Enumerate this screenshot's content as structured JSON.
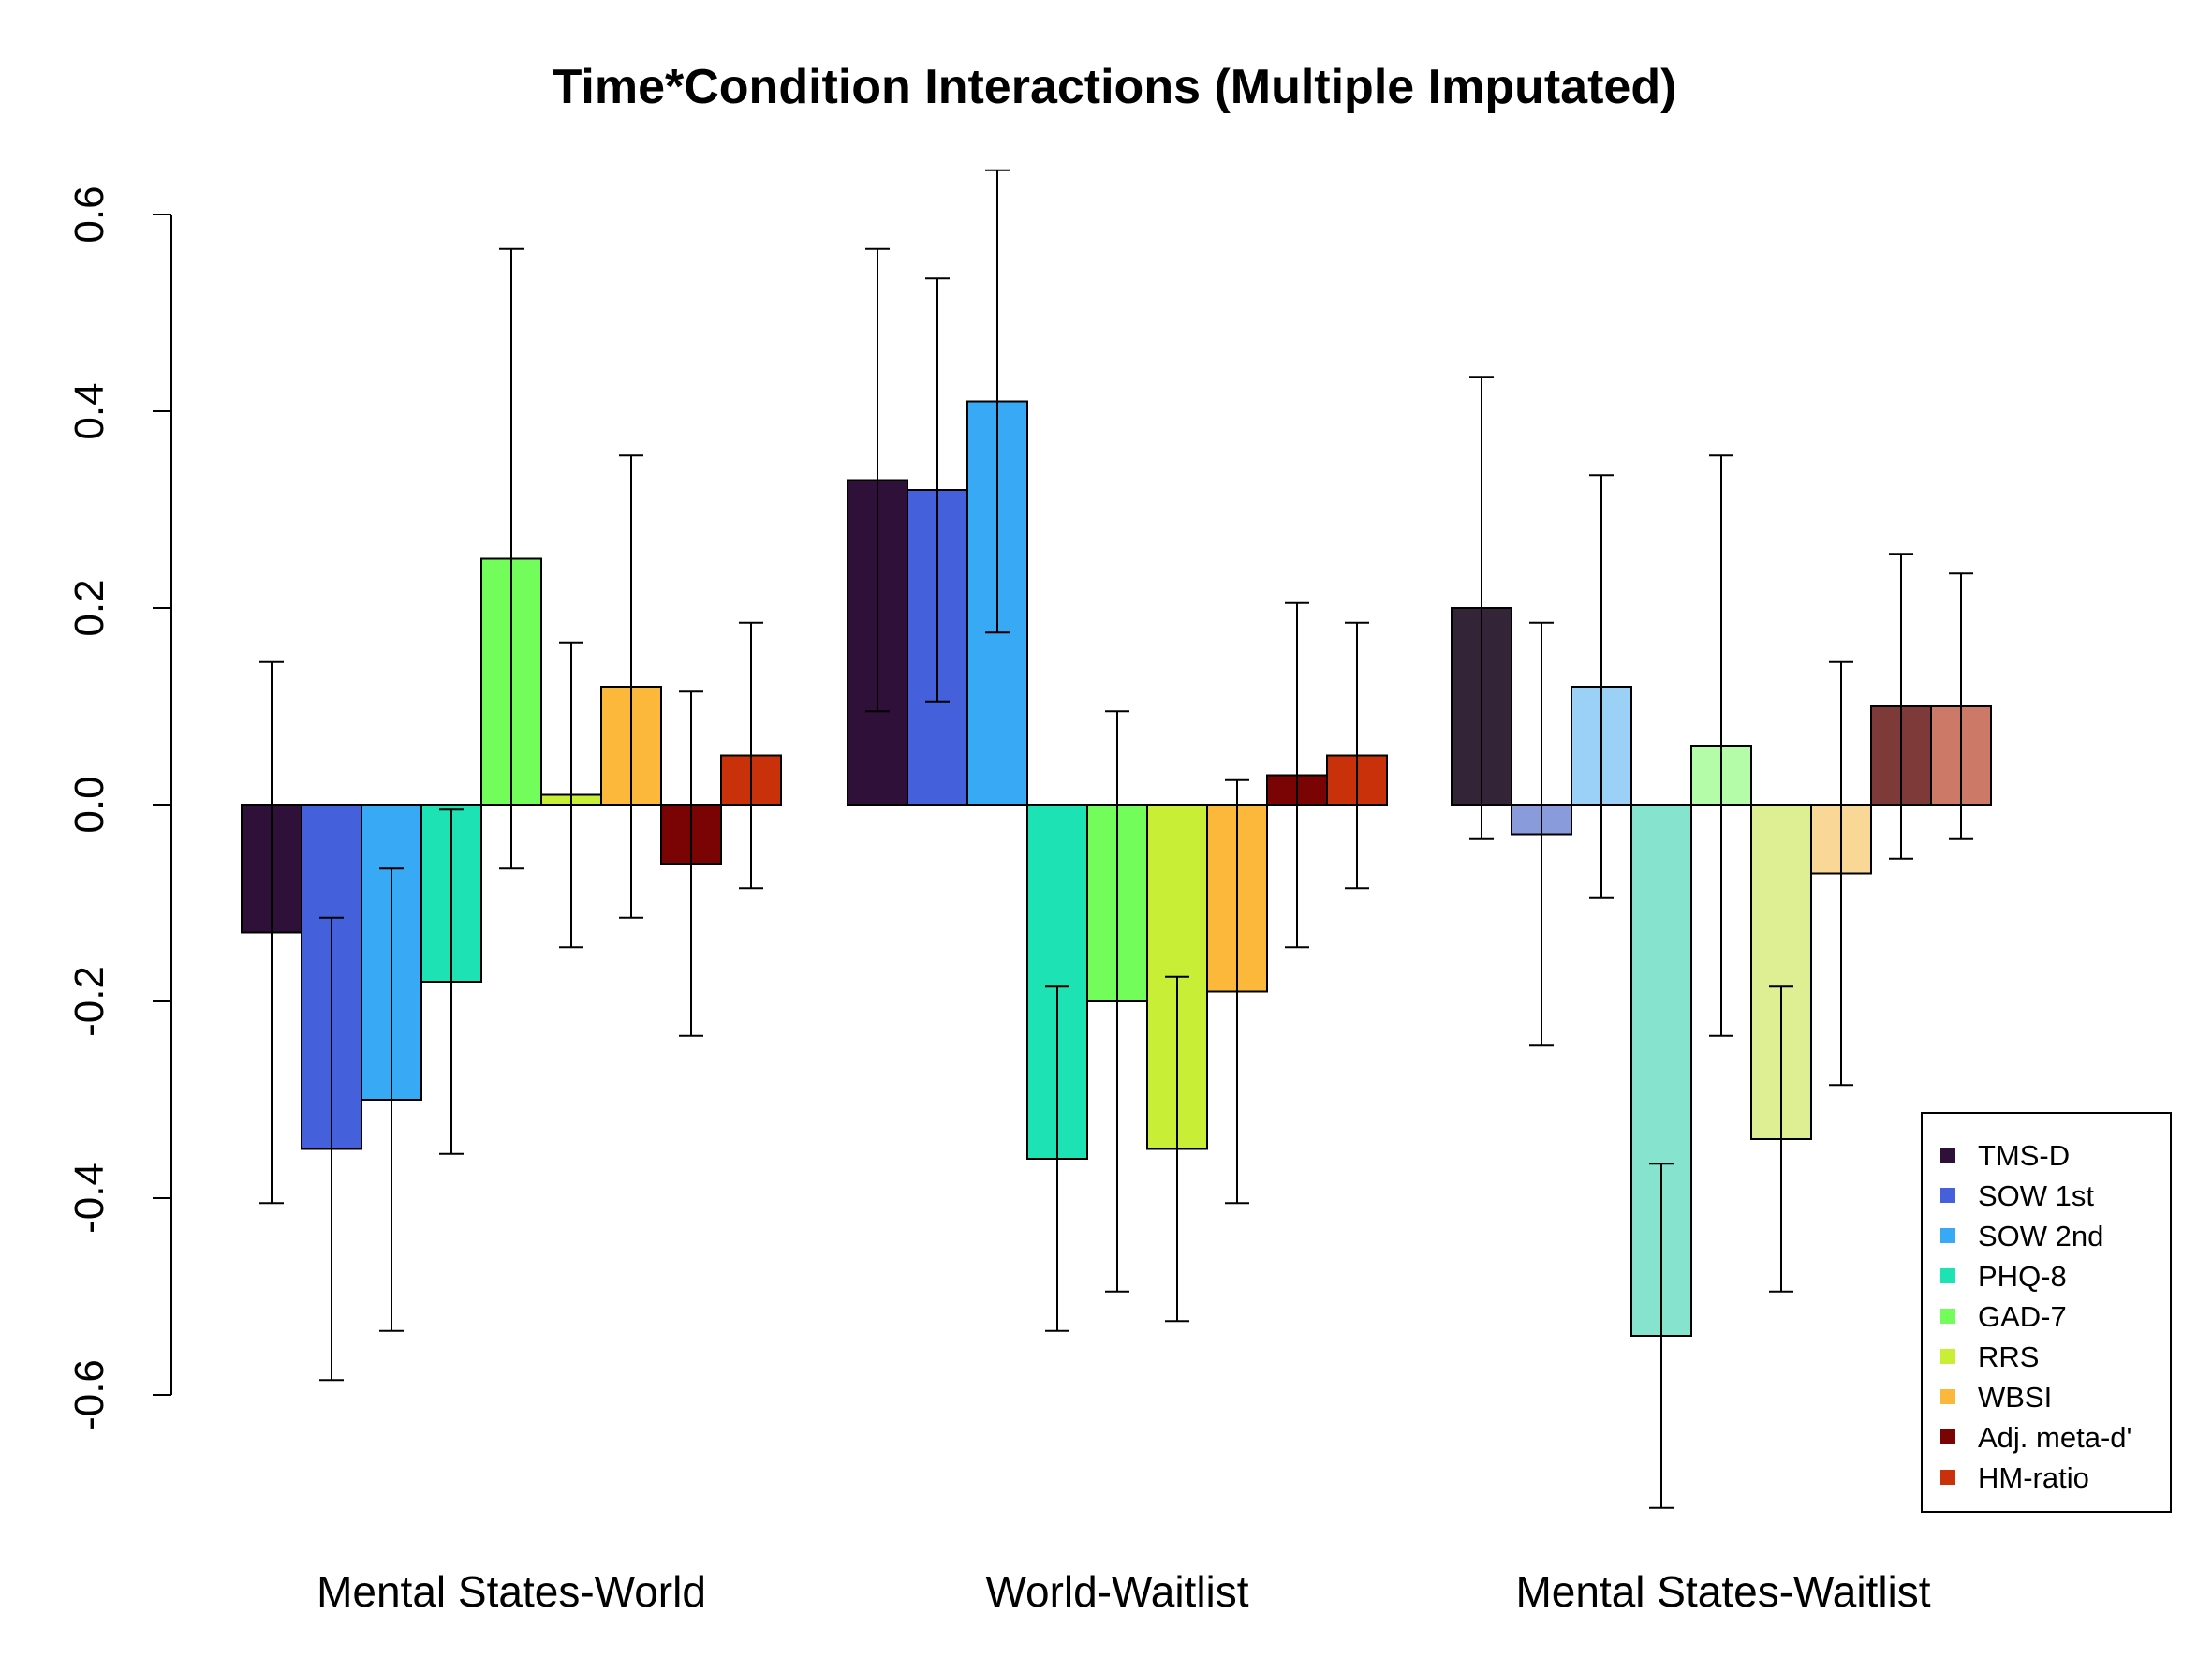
{
  "chart_data": {
    "type": "bar",
    "title": "Time*Condition Interactions (Multiple Imputated)",
    "xlabel": "",
    "ylabel": "",
    "ylim": [
      -0.6,
      0.6
    ],
    "y_ticks": [
      -0.6,
      -0.4,
      -0.2,
      0.0,
      0.2,
      0.4,
      0.6
    ],
    "y_tick_labels": [
      "-0.6",
      "-0.4",
      "-0.2",
      "0.0",
      "0.2",
      "0.4",
      "0.6"
    ],
    "grid": false,
    "legend_position": "bottom-right",
    "categories": [
      "Mental States-World",
      "World-Waitlist",
      "Mental States-Waitlist"
    ],
    "series": [
      {
        "name": "TMS-D",
        "color": "#2E1038",
        "colors": [
          "#2E1038",
          "#2E1038",
          "#332438"
        ],
        "values": [
          -0.13,
          0.33,
          0.2
        ],
        "ci_low": [
          -0.405,
          0.095,
          -0.035
        ],
        "ci_high": [
          0.145,
          0.565,
          0.435
        ]
      },
      {
        "name": "SOW 1st",
        "color": "#4460DB",
        "colors": [
          "#4460DB",
          "#4460DB",
          "#8A9BDB"
        ],
        "values": [
          -0.35,
          0.32,
          -0.03
        ],
        "ci_low": [
          -0.585,
          0.105,
          -0.245
        ],
        "ci_high": [
          -0.115,
          0.535,
          0.185
        ]
      },
      {
        "name": "SOW 2nd",
        "color": "#38A9F5",
        "colors": [
          "#38A9F5",
          "#38A9F5",
          "#9CD1F7"
        ],
        "values": [
          -0.3,
          0.41,
          0.12
        ],
        "ci_low": [
          -0.535,
          0.175,
          -0.095
        ],
        "ci_high": [
          -0.065,
          0.645,
          0.335
        ]
      },
      {
        "name": "PHQ-8",
        "color": "#1DE2B4",
        "colors": [
          "#1DE2B4",
          "#1DE2B4",
          "#86E3CE"
        ],
        "values": [
          -0.18,
          -0.36,
          -0.54
        ],
        "ci_low": [
          -0.355,
          -0.535,
          -0.715
        ],
        "ci_high": [
          -0.005,
          -0.185,
          -0.365
        ]
      },
      {
        "name": "GAD-7",
        "color": "#73FD5A",
        "colors": [
          "#73FD5A",
          "#73FD5A",
          "#B5FCA9"
        ],
        "values": [
          0.25,
          -0.2,
          0.06
        ],
        "ci_low": [
          -0.065,
          -0.495,
          -0.235
        ],
        "ci_high": [
          0.565,
          0.095,
          0.355
        ]
      },
      {
        "name": "RRS",
        "color": "#C8EE35",
        "colors": [
          "#C8EE35",
          "#C8EE35",
          "#DDEE93"
        ],
        "values": [
          0.01,
          -0.35,
          -0.34
        ],
        "ci_low": [
          -0.145,
          -0.525,
          -0.495
        ],
        "ci_high": [
          0.165,
          -0.175,
          -0.185
        ]
      },
      {
        "name": "WBSI",
        "color": "#FBB83A",
        "colors": [
          "#FBB83A",
          "#FBB83A",
          "#F9D897"
        ],
        "values": [
          0.12,
          -0.19,
          -0.07
        ],
        "ci_low": [
          -0.115,
          -0.405,
          -0.285
        ],
        "ci_high": [
          0.355,
          0.025,
          0.145
        ]
      },
      {
        "name": "Adj. meta-d'",
        "color": "#7A0403",
        "colors": [
          "#7A0403",
          "#7A0403",
          "#7D3A38"
        ],
        "values": [
          -0.06,
          0.03,
          0.1
        ],
        "ci_low": [
          -0.235,
          -0.145,
          -0.055
        ],
        "ci_high": [
          0.115,
          0.205,
          0.255
        ]
      },
      {
        "name": "HM-ratio",
        "color": "#C9310B",
        "colors": [
          "#C9310B",
          "#C9310B",
          "#CC7A67"
        ],
        "values": [
          0.05,
          0.05,
          0.1
        ],
        "ci_low": [
          -0.085,
          -0.085,
          -0.035
        ],
        "ci_high": [
          0.185,
          0.185,
          0.235
        ]
      }
    ]
  }
}
